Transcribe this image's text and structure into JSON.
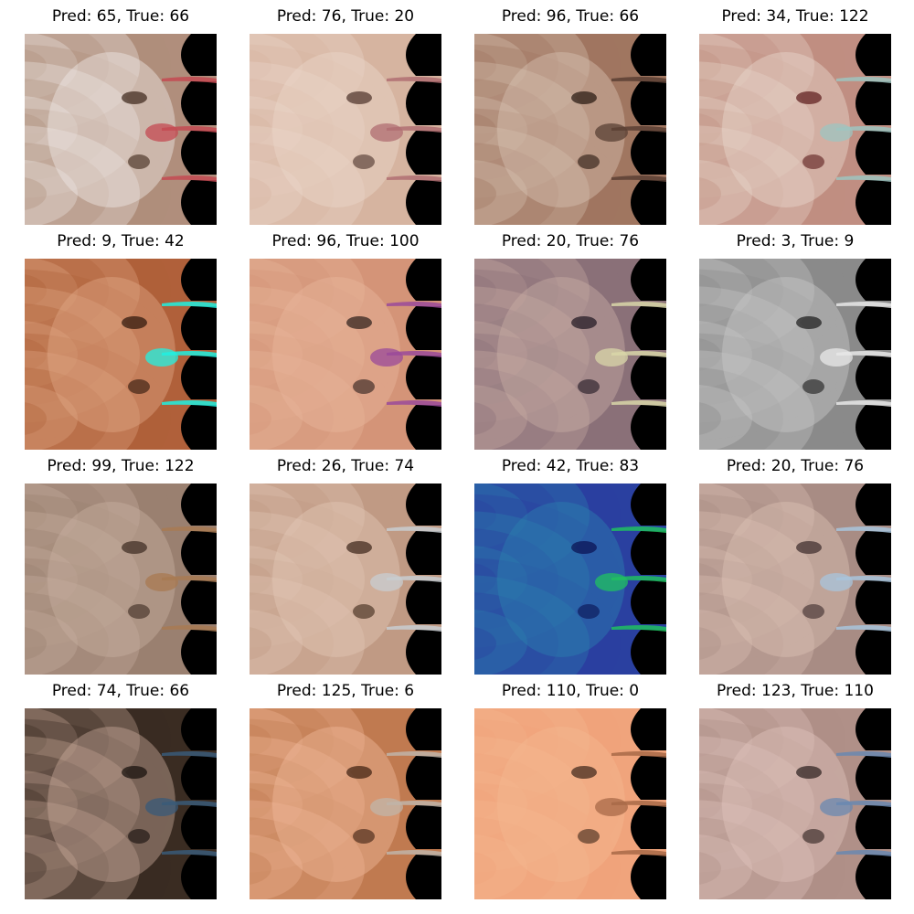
{
  "panels": [
    {
      "pred": 65,
      "true": 66,
      "label": "Pred: 65, True: 66",
      "colors": {
        "skin": "#b08e7c",
        "dark": "#3a2418",
        "accent": "#c44a52",
        "light": "#efe8e6"
      }
    },
    {
      "pred": 76,
      "true": 20,
      "label": "Pred: 76, True: 20",
      "colors": {
        "skin": "#d6b4a0",
        "dark": "#4a3028",
        "accent": "#b06e72",
        "light": "#ead6ca"
      }
    },
    {
      "pred": 96,
      "true": 66,
      "label": "Pred: 96, True: 66",
      "colors": {
        "skin": "#a07660",
        "dark": "#24160e",
        "accent": "#5a4034",
        "light": "#d8c2b2"
      }
    },
    {
      "pred": 34,
      "true": 122,
      "label": "Pred: 34, True: 122",
      "colors": {
        "skin": "#c08e82",
        "dark": "#5a1a1a",
        "accent": "#9ec4c0",
        "light": "#e8d6cc"
      }
    },
    {
      "pred": 9,
      "true": 42,
      "label": "Pred: 9, True: 42",
      "colors": {
        "skin": "#b0603a",
        "dark": "#2a140a",
        "accent": "#20f0e0",
        "light": "#e0a684"
      }
    },
    {
      "pred": 96,
      "true": 100,
      "label": "Pred: 96, True: 100",
      "colors": {
        "skin": "#d49478",
        "dark": "#2a1c1a",
        "accent": "#9a4a9a",
        "light": "#e8b69c"
      }
    },
    {
      "pred": 20,
      "true": 76,
      "label": "Pred: 20, True: 76",
      "colors": {
        "skin": "#8a7078",
        "dark": "#1e1620",
        "accent": "#d8d6a8",
        "light": "#c8aca4"
      }
    },
    {
      "pred": 3,
      "true": 9,
      "label": "Pred: 3, True: 9",
      "colors": {
        "skin": "#8a8a8a",
        "dark": "#1a1a1a",
        "accent": "#e8e8e8",
        "light": "#c8c8c8"
      }
    },
    {
      "pred": 99,
      "true": 122,
      "label": "Pred: 99, True: 122",
      "colors": {
        "skin": "#9a8070",
        "dark": "#3a2a20",
        "accent": "#a87a52",
        "light": "#c8b0a0"
      }
    },
    {
      "pred": 26,
      "true": 74,
      "label": "Pred: 26, True: 74",
      "colors": {
        "skin": "#c09a84",
        "dark": "#3a2418",
        "accent": "#c8ccd0",
        "light": "#e2c8b6"
      }
    },
    {
      "pred": 42,
      "true": 83,
      "label": "Pred: 42, True: 83",
      "colors": {
        "skin": "#2a40a0",
        "dark": "#0a1050",
        "accent": "#20c060",
        "light": "#2a80b0"
      }
    },
    {
      "pred": 20,
      "true": 76,
      "label": "Pred: 20, True: 76",
      "colors": {
        "skin": "#a88c84",
        "dark": "#3a2a2a",
        "accent": "#a8c4dc",
        "light": "#dcc0b4"
      }
    },
    {
      "pred": 74,
      "true": 66,
      "label": "Pred: 74, True: 66",
      "colors": {
        "skin": "#3a2c22",
        "dark": "#140e0a",
        "accent": "#3a5a78",
        "light": "#c8a898"
      }
    },
    {
      "pred": 125,
      "true": 6,
      "label": "Pred: 125, True: 6",
      "colors": {
        "skin": "#c07a50",
        "dark": "#3a1e10",
        "accent": "#c0b4a8",
        "light": "#f0b898"
      }
    },
    {
      "pred": 110,
      "true": 0,
      "label": "Pred: 110, True: 0",
      "colors": {
        "skin": "#f0a47c",
        "dark": "#3a2418",
        "accent": "#a86a48",
        "light": "#f4b890"
      }
    },
    {
      "pred": 123,
      "true": 110,
      "label": "Pred: 123, True: 110",
      "colors": {
        "skin": "#b09088",
        "dark": "#2a1e1c",
        "accent": "#6a88b0",
        "light": "#e0c4bc"
      }
    }
  ]
}
